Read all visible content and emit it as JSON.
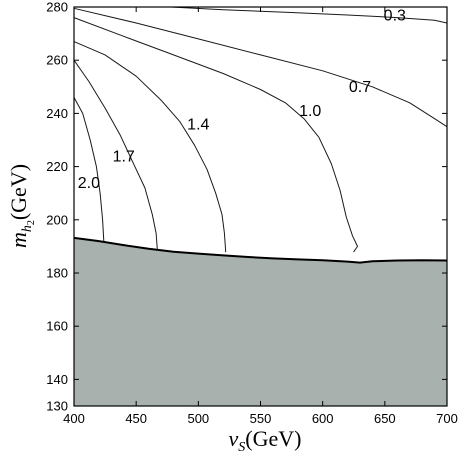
{
  "chart_data": {
    "type": "line",
    "xlabel": {
      "symbol": "v",
      "sub": "S",
      "unit": "(GeV)"
    },
    "ylabel": {
      "symbol": "m",
      "sub": "h",
      "subsub": "2",
      "unit": "(GeV)"
    },
    "xlim": [
      400,
      700
    ],
    "ylim": [
      130,
      280
    ],
    "xticks": [
      400,
      450,
      500,
      550,
      600,
      650,
      700
    ],
    "yticks": [
      130,
      140,
      160,
      180,
      200,
      220,
      240,
      260,
      280
    ],
    "grid": false,
    "legend": "none",
    "colors": {
      "line": "#1a1a1a",
      "excluded": "#a8b1ae",
      "boundary": "#000000"
    },
    "excluded_region": {
      "boundary": [
        [
          400,
          193.2
        ],
        [
          420,
          192.0
        ],
        [
          440,
          190.5
        ],
        [
          460,
          189.1
        ],
        [
          480,
          188.0
        ],
        [
          500,
          187.3
        ],
        [
          520,
          186.6
        ],
        [
          540,
          186.0
        ],
        [
          560,
          185.5
        ],
        [
          580,
          185.1
        ],
        [
          600,
          184.8
        ],
        [
          620,
          184.3
        ],
        [
          630,
          183.9
        ],
        [
          640,
          184.4
        ],
        [
          660,
          184.7
        ],
        [
          680,
          184.8
        ],
        [
          700,
          184.7
        ]
      ]
    },
    "series": [
      {
        "name": "2.0",
        "label_at": [
          412,
          212
        ],
        "points": [
          [
            400,
            246
          ],
          [
            407,
            240
          ],
          [
            413,
            230
          ],
          [
            418,
            220
          ],
          [
            421,
            210
          ],
          [
            423,
            200
          ],
          [
            424,
            192
          ]
        ]
      },
      {
        "name": "1.7",
        "label_at": [
          440,
          222
        ],
        "points": [
          [
            400,
            260
          ],
          [
            412,
            252
          ],
          [
            425,
            242
          ],
          [
            437,
            232
          ],
          [
            447,
            222
          ],
          [
            457,
            212
          ],
          [
            463,
            202
          ],
          [
            466,
            195
          ],
          [
            467,
            189
          ]
        ]
      },
      {
        "name": "1.4",
        "label_at": [
          500,
          234
        ],
        "points": [
          [
            400,
            267
          ],
          [
            425,
            262
          ],
          [
            450,
            254
          ],
          [
            470,
            245
          ],
          [
            485,
            237
          ],
          [
            497,
            228
          ],
          [
            507,
            219
          ],
          [
            514,
            210
          ],
          [
            519,
            202
          ],
          [
            521,
            195
          ],
          [
            522,
            188
          ]
        ]
      },
      {
        "name": "1.0",
        "label_at": [
          590,
          239
        ],
        "points": [
          [
            400,
            276
          ],
          [
            440,
            269
          ],
          [
            480,
            262
          ],
          [
            520,
            255
          ],
          [
            550,
            249
          ],
          [
            570,
            244
          ],
          [
            585,
            238
          ],
          [
            597,
            231
          ],
          [
            607,
            221
          ],
          [
            614,
            211
          ],
          [
            619,
            201
          ],
          [
            624,
            194
          ],
          [
            628,
            190
          ],
          [
            625,
            188
          ]
        ]
      },
      {
        "name": "0.7",
        "label_at": [
          630,
          248
        ],
        "points": [
          [
            400,
            279.5
          ],
          [
            450,
            274
          ],
          [
            500,
            268
          ],
          [
            550,
            262
          ],
          [
            600,
            256
          ],
          [
            640,
            250
          ],
          [
            670,
            244
          ],
          [
            690,
            238
          ],
          [
            700,
            235
          ]
        ]
      },
      {
        "name": "0.3",
        "label_at": [
          658,
          275
        ],
        "points": [
          [
            478,
            280
          ],
          [
            520,
            279
          ],
          [
            570,
            278
          ],
          [
            620,
            277
          ],
          [
            660,
            276
          ],
          [
            690,
            275
          ],
          [
            700,
            274
          ]
        ]
      }
    ]
  }
}
